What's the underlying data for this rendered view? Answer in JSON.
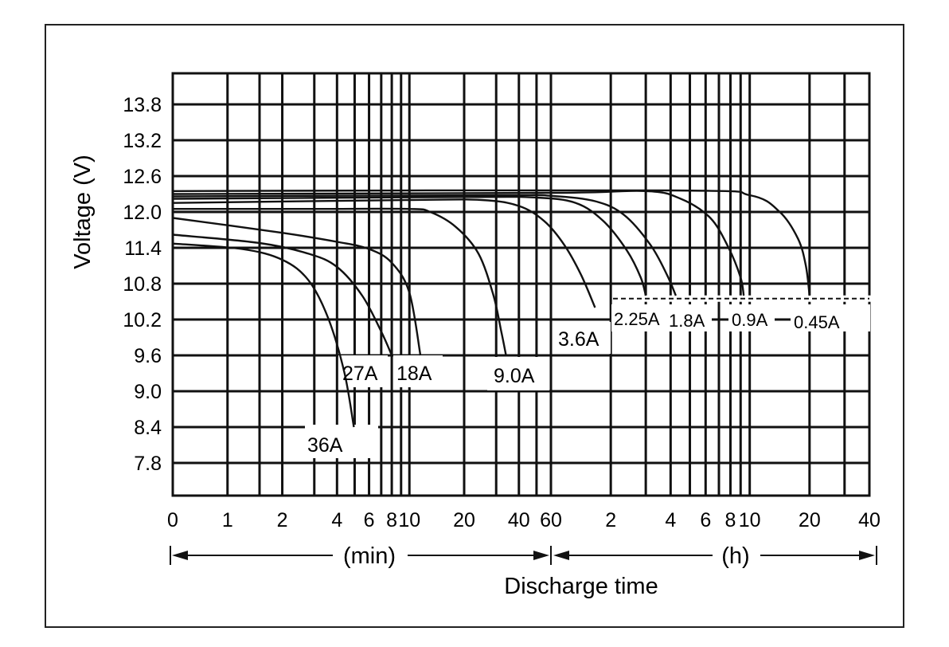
{
  "chart_data": {
    "type": "line",
    "ylabel": "Voltage (V)",
    "xlabel": "Discharge time",
    "y_ticks": [
      "13.8",
      "13.2",
      "12.6",
      "12.0",
      "11.4",
      "10.8",
      "10.2",
      "9.6",
      "9.0",
      "8.4",
      "7.8"
    ],
    "ylim": [
      7.5,
      14.4
    ],
    "x_scale": "log",
    "x_unit_minutes_label": "(min)",
    "x_unit_hours_label": "(h)",
    "x_ticks": [
      {
        "label": "0",
        "minutes": 0.5
      },
      {
        "label": "1",
        "minutes": 1
      },
      {
        "label": "2",
        "minutes": 2
      },
      {
        "label": "4",
        "minutes": 4
      },
      {
        "label": "6",
        "minutes": 6
      },
      {
        "label": "8",
        "minutes": 8
      },
      {
        "label": "10",
        "minutes": 10
      },
      {
        "label": "20",
        "minutes": 20
      },
      {
        "label": "40",
        "minutes": 40
      },
      {
        "label": "60",
        "minutes": 60
      },
      {
        "label": "2",
        "minutes": 120
      },
      {
        "label": "4",
        "minutes": 240
      },
      {
        "label": "6",
        "minutes": 360
      },
      {
        "label": "8",
        "minutes": 480
      },
      {
        "label": "10",
        "minutes": 600
      },
      {
        "label": "20",
        "minutes": 1200
      },
      {
        "label": "40",
        "minutes": 2400
      }
    ],
    "grid": true,
    "cutoff_voltage_dashed": 10.55,
    "series": [
      {
        "name": "36A",
        "points": [
          [
            0.5,
            11.47
          ],
          [
            1.2,
            11.38
          ],
          [
            2.0,
            11.2
          ],
          [
            2.8,
            10.85
          ],
          [
            3.6,
            10.2
          ],
          [
            4.4,
            9.3
          ],
          [
            4.95,
            8.4
          ]
        ]
      },
      {
        "name": "27A",
        "points": [
          [
            0.5,
            11.62
          ],
          [
            1.5,
            11.48
          ],
          [
            2.8,
            11.3
          ],
          [
            4.0,
            11.08
          ],
          [
            5.5,
            10.6
          ],
          [
            7.0,
            10.0
          ],
          [
            8.0,
            9.6
          ]
        ]
      },
      {
        "name": "18A",
        "points": [
          [
            0.5,
            11.9
          ],
          [
            2.0,
            11.65
          ],
          [
            4.0,
            11.5
          ],
          [
            6.0,
            11.38
          ],
          [
            8.0,
            11.15
          ],
          [
            10.0,
            10.65
          ],
          [
            11.5,
            9.6
          ]
        ]
      },
      {
        "name": "9.0A",
        "points": [
          [
            0.5,
            12.05
          ],
          [
            3.0,
            12.05
          ],
          [
            10.0,
            12.05
          ],
          [
            13.0,
            12.0
          ],
          [
            18.0,
            11.75
          ],
          [
            24.0,
            11.3
          ],
          [
            29.0,
            10.6
          ],
          [
            32.0,
            10.0
          ],
          [
            34.0,
            9.6
          ]
        ]
      },
      {
        "name": "3.6A",
        "points": [
          [
            0.5,
            12.15
          ],
          [
            10.0,
            12.2
          ],
          [
            25.0,
            12.2
          ],
          [
            40.0,
            12.1
          ],
          [
            55.0,
            11.85
          ],
          [
            70.0,
            11.45
          ],
          [
            85.0,
            10.95
          ],
          [
            100.0,
            10.4
          ]
        ]
      },
      {
        "name": "2.25A",
        "points": [
          [
            0.5,
            12.22
          ],
          [
            20.0,
            12.25
          ],
          [
            50.0,
            12.24
          ],
          [
            80.0,
            12.15
          ],
          [
            110.0,
            11.85
          ],
          [
            145.0,
            11.35
          ],
          [
            170.0,
            10.9
          ],
          [
            180.0,
            10.6
          ]
        ]
      },
      {
        "name": "1.8A",
        "points": [
          [
            0.5,
            12.26
          ],
          [
            30.0,
            12.28
          ],
          [
            60.0,
            12.27
          ],
          [
            100.0,
            12.18
          ],
          [
            140.0,
            11.95
          ],
          [
            190.0,
            11.45
          ],
          [
            230.0,
            10.95
          ],
          [
            255.0,
            10.6
          ]
        ]
      },
      {
        "name": "0.9A",
        "points": [
          [
            0.5,
            12.3
          ],
          [
            60.0,
            12.32
          ],
          [
            180.0,
            12.35
          ],
          [
            270.0,
            12.22
          ],
          [
            380.0,
            11.9
          ],
          [
            470.0,
            11.4
          ],
          [
            540.0,
            10.9
          ],
          [
            560.0,
            10.6
          ]
        ]
      },
      {
        "name": "0.45A",
        "points": [
          [
            0.5,
            12.35
          ],
          [
            240.0,
            12.36
          ],
          [
            600.0,
            12.28
          ],
          [
            850.0,
            12.0
          ],
          [
            1050.0,
            11.55
          ],
          [
            1150.0,
            11.1
          ],
          [
            1200.0,
            10.6
          ]
        ]
      }
    ]
  }
}
